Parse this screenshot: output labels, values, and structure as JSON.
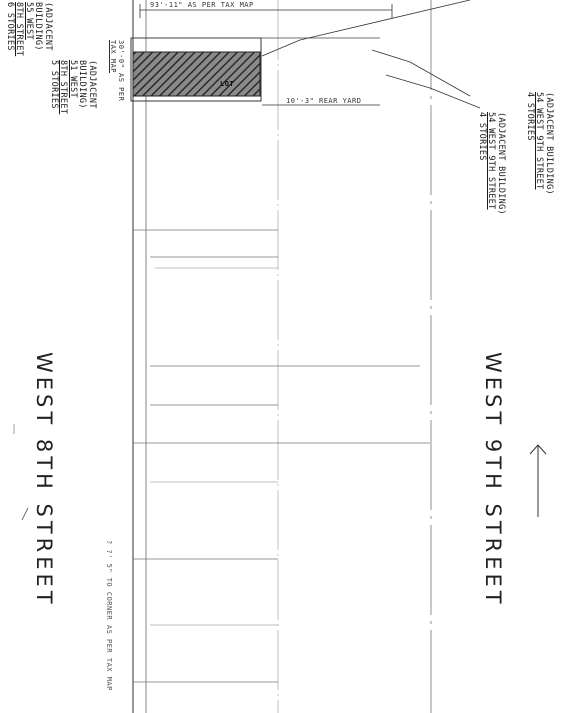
{
  "streets": {
    "south": "WEST 8TH STREET",
    "north": "WEST 9TH STREET"
  },
  "dimensions": {
    "tax_map_top": "93'-11\" AS PER TAX MAP",
    "tax_map_left_1": "30'-0\" AS PER",
    "tax_map_left_2": "TAX MAP",
    "rear_yard": "10'-3\" REAR YARD",
    "corner": "? ?' 5\" TO CORNER AS PER TAX MAP"
  },
  "adjacent": {
    "left_a": {
      "l1": "(ADJACENT",
      "l2": "BUILDING)",
      "l3": "55 WEST",
      "l4": "8TH STREET",
      "l5": "6 STORIES"
    },
    "left_b": {
      "l1": "(ADJACENT",
      "l2": "BUILDING)",
      "l3": "51 WEST",
      "l4": "8TH STREET",
      "l5": "5 STORIES"
    },
    "right_a": {
      "l1": "(ADJACENT BUILDING)",
      "l2": "54 WEST 9TH STREET",
      "l3": "4 STORIES"
    },
    "right_b": {
      "l1": "(ADJACENT BUILDING)",
      "l2": "54 WEST 9TH STREET",
      "l3": "4 STORIES"
    }
  },
  "lot_label": "LOT"
}
